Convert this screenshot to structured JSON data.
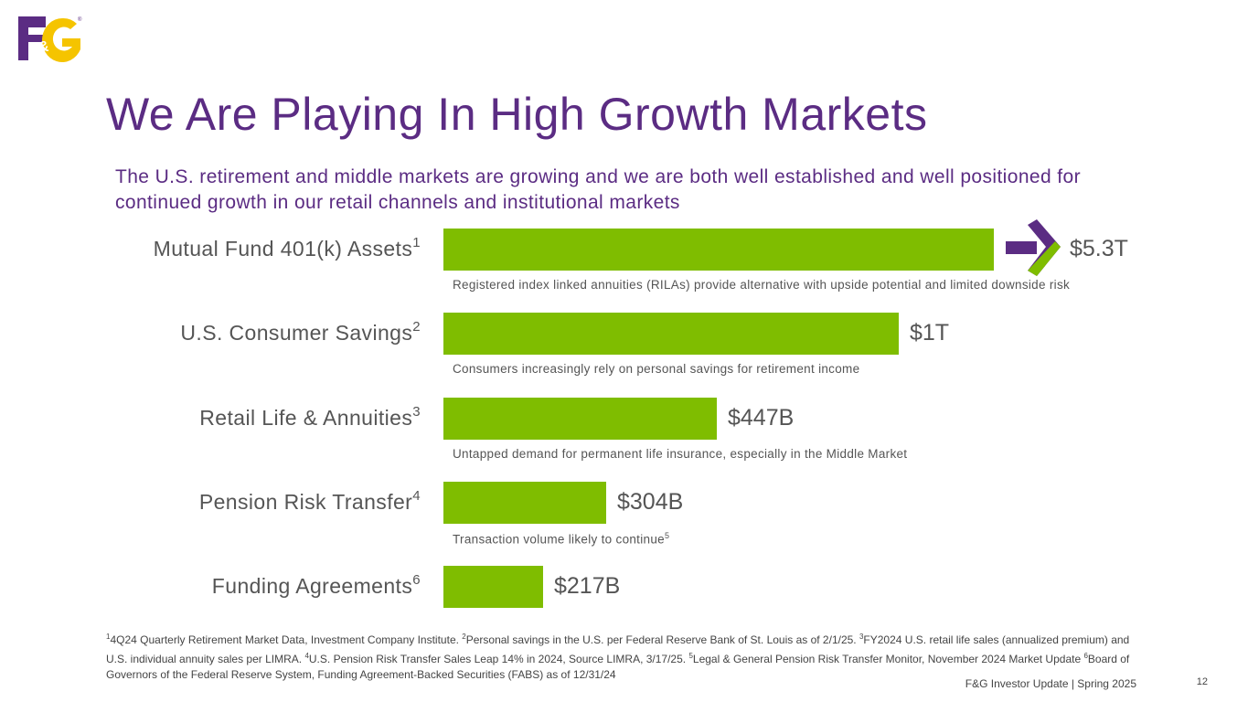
{
  "logo": {
    "text": "F&G",
    "colors": {
      "f": "#5b2c83",
      "g": "#f5c400",
      "amp": "#ffffff"
    }
  },
  "title": "We Are Playing In High Growth Markets",
  "subtitle": "The U.S. retirement and middle markets are growing and we are both well established and well positioned for continued growth in our retail channels and institutional markets",
  "chart_data": {
    "type": "bar",
    "orientation": "horizontal",
    "bar_color": "#7fbd00",
    "categories": [
      {
        "label": "Mutual Fund 401(k) Assets",
        "ref": "1",
        "value_label": "$5.3T",
        "note": "Registered index linked annuities (RILAs) provide alternative with upside potential and limited downside risk",
        "note_ref": ""
      },
      {
        "label": "U.S. Consumer Savings",
        "ref": "2",
        "value_label": "$1T",
        "note": "Consumers increasingly rely on personal savings for retirement income",
        "note_ref": ""
      },
      {
        "label": "Retail Life & Annuities",
        "ref": "3",
        "value_label": "$447B",
        "note": "Untapped demand for permanent life insurance, especially in the Middle Market",
        "note_ref": ""
      },
      {
        "label": "Pension Risk Transfer",
        "ref": "4",
        "value_label": "$304B",
        "note": "Transaction volume likely to continue",
        "note_ref": "5"
      },
      {
        "label": "Funding Agreements",
        "ref": "6",
        "value_label": "$217B",
        "note": "",
        "note_ref": ""
      }
    ],
    "relative_bar_lengths": [
      1.0,
      0.828,
      0.496,
      0.295,
      0.181
    ],
    "axis_break_icon_on_first_bar": true
  },
  "footnotes": [
    {
      "ref": "1",
      "text": "4Q24 Quarterly Retirement Market Data, Investment Company Institute. "
    },
    {
      "ref": "2",
      "text": "Personal savings in the U.S. per Federal Reserve Bank of St. Louis as of 2/1/25. "
    },
    {
      "ref": "3",
      "text": "FY2024 U.S. retail life sales (annualized premium) and U.S. individual annuity sales per LIMRA. "
    },
    {
      "ref": "4",
      "text": "U.S. Pension Risk Transfer Sales Leap 14% in 2024, Source LIMRA, 3/17/25. "
    },
    {
      "ref": "5",
      "text": "Legal & General Pension Risk Transfer Monitor, November 2024 Market Update "
    },
    {
      "ref": "6",
      "text": "Board of Governors of the Federal Reserve System, Funding Agreement-Backed Securities (FABS) as of 12/31/24"
    }
  ],
  "footer": "F&G Investor Update | Spring 2025",
  "page_number": "12",
  "colors": {
    "purple": "#5b2c83",
    "green": "#7fbd00",
    "text_gray": "#555555"
  }
}
